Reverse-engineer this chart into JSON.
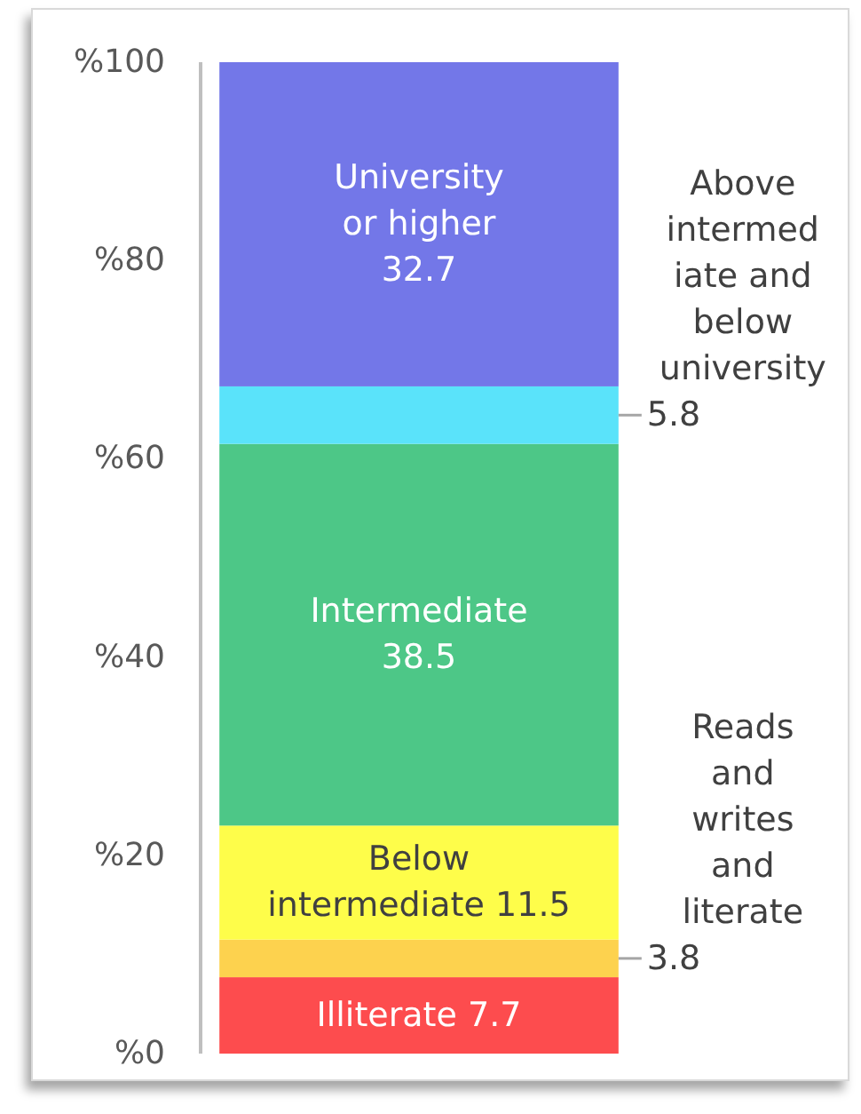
{
  "chart_data": {
    "type": "bar",
    "stacked": true,
    "categories": [
      null
    ],
    "series": [
      {
        "name": "Illiterate",
        "color": "#fd4c4e",
        "values": [
          7.7
        ]
      },
      {
        "name": "Reads and writes and literate",
        "color": "#fdd24e",
        "values": [
          3.8
        ]
      },
      {
        "name": "Below intermediate",
        "color": "#fefd4a",
        "values": [
          11.5
        ]
      },
      {
        "name": "Intermediate",
        "color": "#4dc787",
        "values": [
          38.5
        ]
      },
      {
        "name": "Above intermediate and below university",
        "color": "#5ae3fa",
        "values": [
          5.8
        ]
      },
      {
        "name": "University or higher",
        "color": "#7377e8",
        "values": [
          32.7
        ]
      }
    ],
    "ylim": [
      0,
      100
    ],
    "yticks": [
      {
        "value": 0,
        "label": "%0"
      },
      {
        "value": 20,
        "label": "%20"
      },
      {
        "value": 40,
        "label": "%40"
      },
      {
        "value": 60,
        "label": "%60"
      },
      {
        "value": 80,
        "label": "%80"
      },
      {
        "value": 100,
        "label": "%100"
      }
    ],
    "data_labels": true
  }
}
